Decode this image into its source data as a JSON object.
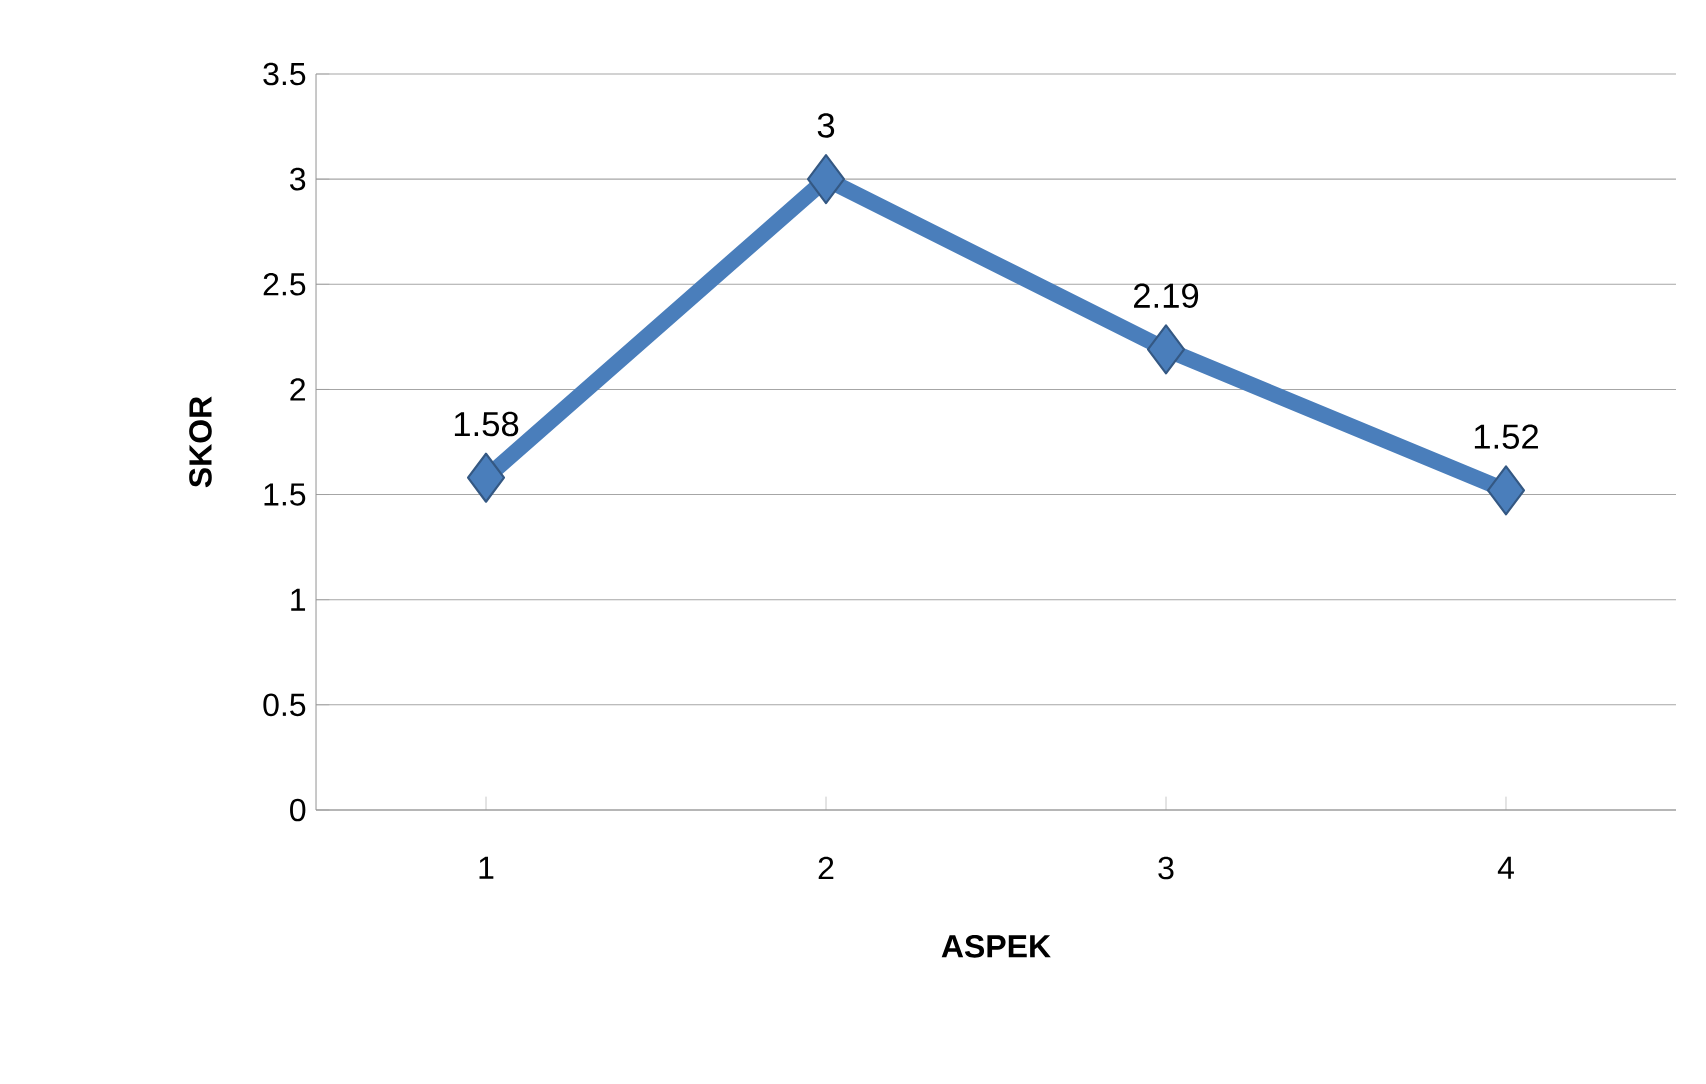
{
  "chart_data": {
    "type": "line",
    "xlabel": "ASPEK",
    "ylabel": "SKOR",
    "categories": [
      "1",
      "2",
      "3",
      "4"
    ],
    "values": [
      1.58,
      3,
      2.19,
      1.52
    ],
    "color": "#4a7ebb",
    "marker": "diamond",
    "data_labels": true,
    "grid": "y",
    "ylim": [
      0,
      3.5
    ],
    "yticks": [
      0,
      0.5,
      1,
      1.5,
      2,
      2.5,
      3,
      3.5
    ]
  }
}
